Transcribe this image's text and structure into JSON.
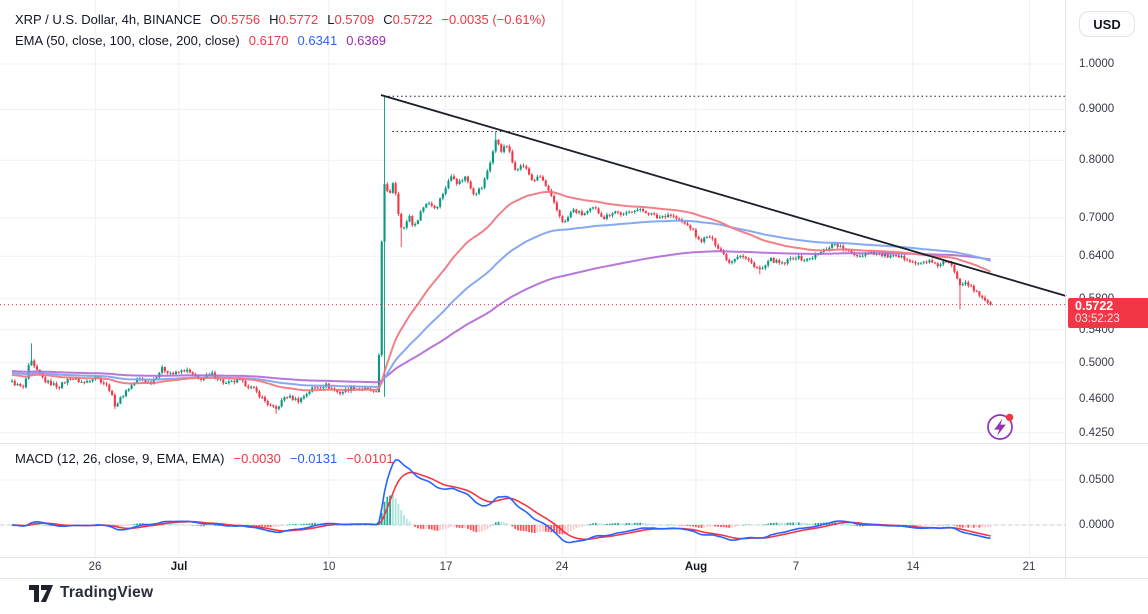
{
  "header": {
    "symbol_row": {
      "title": "XRP / U.S. Dollar, 4h, BINANCE",
      "o_label": "O",
      "o": "0.5756",
      "h_label": "H",
      "h": "0.5772",
      "l_label": "L",
      "l": "0.5709",
      "c_label": "C",
      "c": "0.5722",
      "change": "−0.0035 (−0.61%)"
    },
    "ema_row": {
      "title": "EMA (50, close, 100, close, 200, close)",
      "ema50": "0.6170",
      "ema100": "0.6341",
      "ema200": "0.6369"
    },
    "currency_button": "USD"
  },
  "macd_row": {
    "title": "MACD (12, 26, close, 9, EMA, EMA)",
    "hist": "−0.0030",
    "macd": "−0.0131",
    "signal": "−0.0101"
  },
  "price_badge": {
    "price": "0.5722",
    "countdown": "03:52:23"
  },
  "brand": {
    "name": "TradingView"
  },
  "colors": {
    "up": "#089981",
    "down": "#F23645",
    "ema50_line": "#F0737D",
    "ema100_line": "#7AA1F0",
    "ema200_line": "#B069D6",
    "macd_line": "#2962FF",
    "signal_line": "#F23645",
    "hist_grow_above": "#22AB94",
    "hist_fall_above": "#ACE5DC",
    "hist_grow_below": "#FCCBCD",
    "hist_fall_below": "#FF5252",
    "grid": "#EEF1F7",
    "border": "#E0E3EB",
    "axis_text": "#363A45",
    "text_dark": "#131722",
    "value_red": "#F23645",
    "value_blue": "#2962FF",
    "value_purple": "#9C27B0",
    "trendline": "#1B1F27",
    "badge_bg": "#F23645",
    "zero_dash": "#B6B9C1"
  },
  "chart_data": {
    "type": "candlestick",
    "symbol": "XRP/USD",
    "interval": "4h",
    "exchange": "BINANCE",
    "scale": "log",
    "bars_per_day": 6,
    "total_bars": 353,
    "start_date": "Jun 21",
    "x_ticks": [
      {
        "label": "26",
        "day": 5
      },
      {
        "label": "Jul",
        "day": 10,
        "month": true
      },
      {
        "label": "10",
        "day": 19
      },
      {
        "label": "17",
        "day": 26
      },
      {
        "label": "24",
        "day": 33
      },
      {
        "label": "Aug",
        "day": 41,
        "month": true
      },
      {
        "label": "7",
        "day": 47
      },
      {
        "label": "14",
        "day": 54
      },
      {
        "label": "21",
        "day": 61
      }
    ],
    "price_pane": {
      "y_ticks": [
        {
          "label": "1.0000",
          "value": 1.0
        },
        {
          "label": "0.9000",
          "value": 0.9
        },
        {
          "label": "0.8000",
          "value": 0.8
        },
        {
          "label": "0.7000",
          "value": 0.7
        },
        {
          "label": "0.6400",
          "value": 0.64
        },
        {
          "label": "0.5800",
          "value": 0.58
        },
        {
          "label": "0.5400",
          "value": 0.54
        },
        {
          "label": "0.5000",
          "value": 0.5
        },
        {
          "label": "0.4600",
          "value": 0.46
        },
        {
          "label": "0.4250",
          "value": 0.425
        }
      ],
      "close_keyframes": [
        [
          0,
          0.478
        ],
        [
          0.7,
          0.471
        ],
        [
          1.1,
          0.503
        ],
        [
          1.4,
          0.492
        ],
        [
          2,
          0.479
        ],
        [
          2.8,
          0.473
        ],
        [
          3.5,
          0.483
        ],
        [
          4.3,
          0.477
        ],
        [
          5,
          0.485
        ],
        [
          5.8,
          0.472
        ],
        [
          6.2,
          0.452
        ],
        [
          6.8,
          0.468
        ],
        [
          7.6,
          0.482
        ],
        [
          8.3,
          0.477
        ],
        [
          9,
          0.493
        ],
        [
          9.7,
          0.487
        ],
        [
          10.4,
          0.492
        ],
        [
          11.2,
          0.481
        ],
        [
          12,
          0.487
        ],
        [
          12.8,
          0.476
        ],
        [
          13.6,
          0.48
        ],
        [
          14.5,
          0.47
        ],
        [
          15.3,
          0.455
        ],
        [
          15.8,
          0.448
        ],
        [
          16.4,
          0.463
        ],
        [
          17.2,
          0.458
        ],
        [
          18,
          0.471
        ],
        [
          18.8,
          0.475
        ],
        [
          19.6,
          0.466
        ],
        [
          20.4,
          0.472
        ],
        [
          21.2,
          0.47
        ],
        [
          21.9,
          0.467
        ],
        [
          22.05,
          0.53
        ],
        [
          22.2,
          0.7
        ],
        [
          22.4,
          0.785
        ],
        [
          22.5,
          0.745
        ],
        [
          22.6,
          0.735
        ],
        [
          22.9,
          0.765
        ],
        [
          23.1,
          0.715
        ],
        [
          23.4,
          0.675
        ],
        [
          23.8,
          0.705
        ],
        [
          24.1,
          0.683
        ],
        [
          24.5,
          0.71
        ],
        [
          24.9,
          0.727
        ],
        [
          25.4,
          0.715
        ],
        [
          25.9,
          0.745
        ],
        [
          26.4,
          0.775
        ],
        [
          26.7,
          0.758
        ],
        [
          27.2,
          0.77
        ],
        [
          27.7,
          0.74
        ],
        [
          28.2,
          0.752
        ],
        [
          28.7,
          0.8
        ],
        [
          29.05,
          0.843
        ],
        [
          29.3,
          0.818
        ],
        [
          29.7,
          0.828
        ],
        [
          30.1,
          0.785
        ],
        [
          30.7,
          0.79
        ],
        [
          31.2,
          0.763
        ],
        [
          31.7,
          0.77
        ],
        [
          32.2,
          0.742
        ],
        [
          32.7,
          0.71
        ],
        [
          33.1,
          0.69
        ],
        [
          33.6,
          0.713
        ],
        [
          34.2,
          0.705
        ],
        [
          34.9,
          0.716
        ],
        [
          35.5,
          0.7
        ],
        [
          36.1,
          0.711
        ],
        [
          36.7,
          0.704
        ],
        [
          37.3,
          0.714
        ],
        [
          38,
          0.71
        ],
        [
          38.7,
          0.7
        ],
        [
          39.4,
          0.706
        ],
        [
          40.1,
          0.694
        ],
        [
          40.7,
          0.684
        ],
        [
          41.2,
          0.663
        ],
        [
          41.8,
          0.67
        ],
        [
          42.4,
          0.652
        ],
        [
          43,
          0.631
        ],
        [
          43.6,
          0.643
        ],
        [
          44.2,
          0.633
        ],
        [
          44.9,
          0.619
        ],
        [
          45.5,
          0.635
        ],
        [
          46.2,
          0.628
        ],
        [
          46.9,
          0.64
        ],
        [
          47.6,
          0.634
        ],
        [
          48.3,
          0.643
        ],
        [
          48.9,
          0.653
        ],
        [
          49.3,
          0.66
        ],
        [
          49.7,
          0.653
        ],
        [
          50.2,
          0.646
        ],
        [
          50.8,
          0.641
        ],
        [
          51.4,
          0.647
        ],
        [
          52.1,
          0.642
        ],
        [
          52.9,
          0.639
        ],
        [
          53.7,
          0.637
        ],
        [
          54.3,
          0.628
        ],
        [
          54.9,
          0.634
        ],
        [
          55.4,
          0.626
        ],
        [
          55.9,
          0.632
        ],
        [
          56.4,
          0.625
        ],
        [
          56.8,
          0.601
        ],
        [
          57.2,
          0.604
        ],
        [
          57.6,
          0.592
        ],
        [
          58,
          0.585
        ],
        [
          58.4,
          0.578
        ],
        [
          58.667,
          0.5722
        ]
      ],
      "special_bars": [
        {
          "day": 1.1,
          "high": 0.523
        },
        {
          "day": 6.2,
          "low": 0.449
        },
        {
          "day": 15.8,
          "low": 0.444
        },
        {
          "day": 22.333,
          "high": 0.928,
          "low": 0.462
        },
        {
          "day": 23.4,
          "low": 0.654
        },
        {
          "day": 29.05,
          "high": 0.855
        },
        {
          "day": 44.9,
          "low": 0.614
        },
        {
          "day": 56.9,
          "low": 0.566
        },
        {
          "day": 58.667,
          "open": 0.5756,
          "high": 0.5772,
          "low": 0.5709,
          "close": 0.5722
        }
      ],
      "emas": [
        {
          "period": 50,
          "seed": 0.4865,
          "last_value": "0.6170"
        },
        {
          "period": 100,
          "seed": 0.4885,
          "last_value": "0.6341"
        },
        {
          "period": 200,
          "seed": 0.4905,
          "last_value": "0.6369"
        }
      ],
      "trendline": {
        "from_day": 22.12,
        "from_price": 0.9306,
        "to_day": 63.2,
        "to_price": 0.5838
      },
      "dotted_levels": [
        {
          "price": 0.928,
          "from_day": 22.3
        },
        {
          "price": 0.855,
          "from_day": 22.8
        }
      ],
      "last_close": 0.5722
    },
    "macd_pane": {
      "params": {
        "fast": 12,
        "slow": 26,
        "signal": 9
      },
      "y_ticks": [
        {
          "label": "0.0500",
          "value": 0.05
        },
        {
          "label": "0.0000",
          "value": 0.0
        }
      ],
      "last_values": {
        "hist": -0.003,
        "macd": -0.0131,
        "signal": -0.0101
      }
    }
  }
}
